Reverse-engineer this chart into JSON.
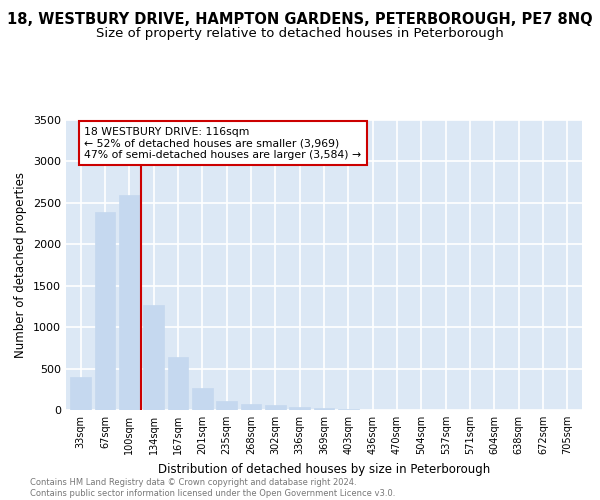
{
  "title": "18, WESTBURY DRIVE, HAMPTON GARDENS, PETERBOROUGH, PE7 8NQ",
  "subtitle": "Size of property relative to detached houses in Peterborough",
  "xlabel": "Distribution of detached houses by size in Peterborough",
  "ylabel": "Number of detached properties",
  "categories": [
    "33sqm",
    "67sqm",
    "100sqm",
    "134sqm",
    "167sqm",
    "201sqm",
    "235sqm",
    "268sqm",
    "302sqm",
    "336sqm",
    "369sqm",
    "403sqm",
    "436sqm",
    "470sqm",
    "504sqm",
    "537sqm",
    "571sqm",
    "604sqm",
    "638sqm",
    "672sqm",
    "705sqm"
  ],
  "values": [
    400,
    2390,
    2590,
    1265,
    645,
    268,
    110,
    78,
    58,
    40,
    20,
    10,
    5,
    3,
    2,
    1,
    1,
    1,
    0,
    0,
    0
  ],
  "bar_color": "#c5d8ef",
  "bar_edgecolor": "#c5d8ef",
  "ylim": [
    0,
    3500
  ],
  "yticks": [
    0,
    500,
    1000,
    1500,
    2000,
    2500,
    3000,
    3500
  ],
  "annotation_title": "18 WESTBURY DRIVE: 116sqm",
  "annotation_line1": "← 52% of detached houses are smaller (3,969)",
  "annotation_line2": "47% of semi-detached houses are larger (3,584) →",
  "annotation_box_color": "#ffffff",
  "annotation_border_color": "#cc0000",
  "background_color": "#dce8f5",
  "grid_color": "#ffffff",
  "footer_line1": "Contains HM Land Registry data © Crown copyright and database right 2024.",
  "footer_line2": "Contains public sector information licensed under the Open Government Licence v3.0.",
  "title_fontsize": 10.5,
  "subtitle_fontsize": 9.5,
  "fig_bg": "#ffffff"
}
